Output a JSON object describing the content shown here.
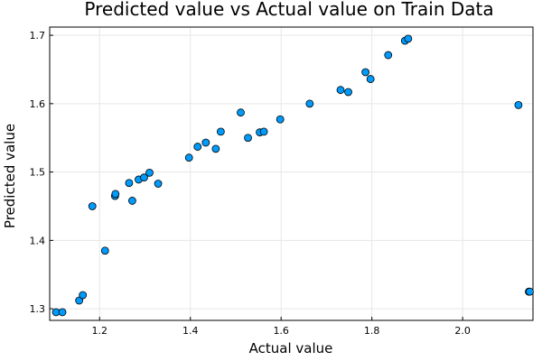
{
  "chart_data": {
    "type": "scatter",
    "title": "Predicted value vs Actual value on Train Data",
    "xlabel": "Actual value",
    "ylabel": "Predicted value",
    "xlim": [
      1.09,
      2.155
    ],
    "ylim": [
      1.283,
      1.712
    ],
    "xticks": [
      {
        "value": 1.2,
        "label": "1.2"
      },
      {
        "value": 1.4,
        "label": "1.4"
      },
      {
        "value": 1.6,
        "label": "1.6"
      },
      {
        "value": 1.8,
        "label": "1.8"
      },
      {
        "value": 2.0,
        "label": "2.0"
      }
    ],
    "yticks": [
      {
        "value": 1.3,
        "label": "1.3"
      },
      {
        "value": 1.4,
        "label": "1.4"
      },
      {
        "value": 1.5,
        "label": "1.5"
      },
      {
        "value": 1.6,
        "label": "1.6"
      },
      {
        "value": 1.7,
        "label": "1.7"
      }
    ],
    "grid": true,
    "legend": "none",
    "marker_color": "#009AFA",
    "series": [
      {
        "points": [
          {
            "x": 1.104,
            "y": 1.295
          },
          {
            "x": 1.118,
            "y": 1.295
          },
          {
            "x": 1.155,
            "y": 1.312
          },
          {
            "x": 1.163,
            "y": 1.32
          },
          {
            "x": 1.184,
            "y": 1.45
          },
          {
            "x": 1.212,
            "y": 1.385
          },
          {
            "x": 1.234,
            "y": 1.465
          },
          {
            "x": 1.235,
            "y": 1.468
          },
          {
            "x": 1.265,
            "y": 1.484
          },
          {
            "x": 1.272,
            "y": 1.458
          },
          {
            "x": 1.286,
            "y": 1.489
          },
          {
            "x": 1.298,
            "y": 1.492
          },
          {
            "x": 1.31,
            "y": 1.499
          },
          {
            "x": 1.329,
            "y": 1.483
          },
          {
            "x": 1.397,
            "y": 1.521
          },
          {
            "x": 1.416,
            "y": 1.537
          },
          {
            "x": 1.434,
            "y": 1.543
          },
          {
            "x": 1.456,
            "y": 1.534
          },
          {
            "x": 1.467,
            "y": 1.559
          },
          {
            "x": 1.511,
            "y": 1.587
          },
          {
            "x": 1.527,
            "y": 1.55
          },
          {
            "x": 1.553,
            "y": 1.558
          },
          {
            "x": 1.562,
            "y": 1.559
          },
          {
            "x": 1.598,
            "y": 1.577
          },
          {
            "x": 1.663,
            "y": 1.6
          },
          {
            "x": 1.731,
            "y": 1.62
          },
          {
            "x": 1.748,
            "y": 1.617
          },
          {
            "x": 1.786,
            "y": 1.646
          },
          {
            "x": 1.797,
            "y": 1.636
          },
          {
            "x": 1.836,
            "y": 1.671
          },
          {
            "x": 1.873,
            "y": 1.692
          },
          {
            "x": 1.88,
            "y": 1.695
          },
          {
            "x": 2.123,
            "y": 1.598
          },
          {
            "x": 2.146,
            "y": 1.325
          },
          {
            "x": 2.148,
            "y": 1.325
          }
        ]
      }
    ]
  }
}
